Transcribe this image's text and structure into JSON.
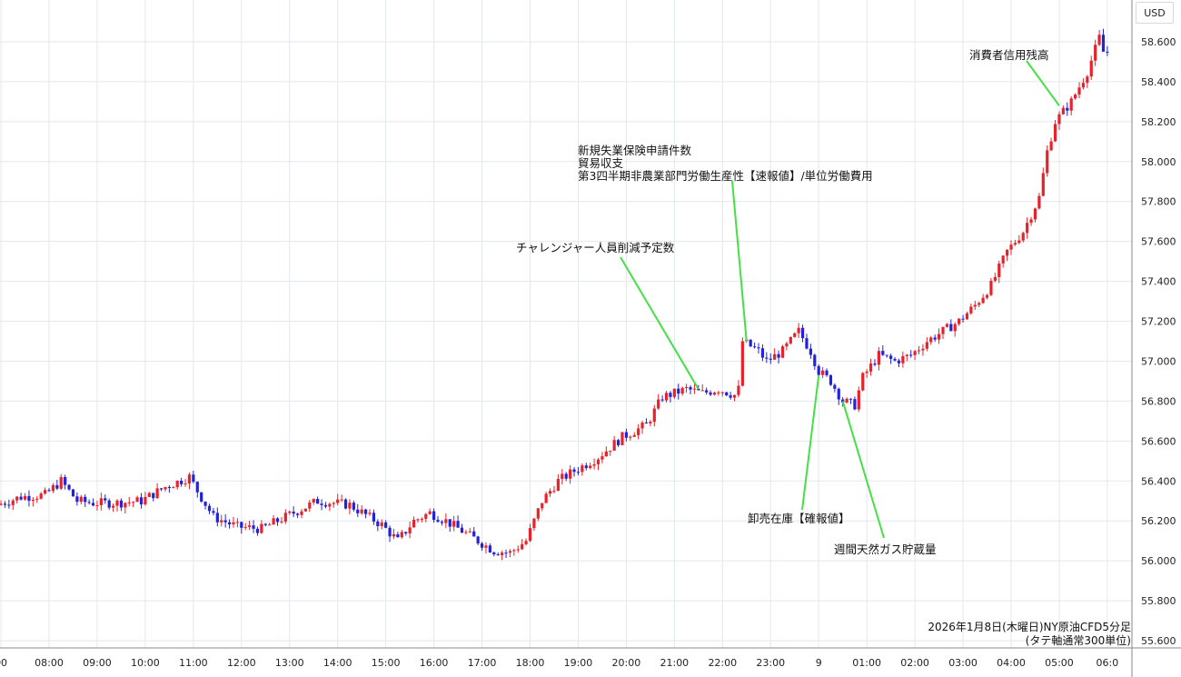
{
  "currency_label": "USD",
  "chart_data": {
    "type": "candlestick",
    "title": "2026年1月8日(木曜日)NY原油CFD5分足",
    "subtitle": "(タテ軸通常300単位)",
    "y_range": [
      55.55,
      58.72
    ],
    "y_ticks": [
      "58.600",
      "58.400",
      "58.200",
      "58.000",
      "57.800",
      "57.600",
      "57.400",
      "57.200",
      "57.000",
      "56.800",
      "56.600",
      "56.400",
      "56.200",
      "56.000",
      "55.800",
      "55.600"
    ],
    "x_ticks": [
      "00",
      "08:00",
      "09:00",
      "10:00",
      "11:00",
      "12:00",
      "13:00",
      "14:00",
      "15:00",
      "16:00",
      "17:00",
      "18:00",
      "19:00",
      "20:00",
      "21:00",
      "22:00",
      "23:00",
      "9",
      "01:00",
      "02:00",
      "03:00",
      "04:00",
      "05:00",
      "06:0"
    ],
    "x_range_hours": [
      7.1,
      6.02
    ],
    "up_color": "#e8222a",
    "down_color": "#2222d8",
    "annotation_color": "#44e044",
    "grid": true,
    "close_path": [
      {
        "t": "07:00",
        "price": 56.28
      },
      {
        "t": "07:30",
        "price": 56.32
      },
      {
        "t": "08:00",
        "price": 56.33
      },
      {
        "t": "08:20",
        "price": 56.4
      },
      {
        "t": "08:40",
        "price": 56.3
      },
      {
        "t": "09:00",
        "price": 56.29
      },
      {
        "t": "09:30",
        "price": 56.29
      },
      {
        "t": "10:00",
        "price": 56.3
      },
      {
        "t": "10:30",
        "price": 56.37
      },
      {
        "t": "11:00",
        "price": 56.42
      },
      {
        "t": "11:10",
        "price": 56.35
      },
      {
        "t": "11:30",
        "price": 56.22
      },
      {
        "t": "12:00",
        "price": 56.17
      },
      {
        "t": "12:30",
        "price": 56.16
      },
      {
        "t": "13:00",
        "price": 56.22
      },
      {
        "t": "13:40",
        "price": 56.3
      },
      {
        "t": "14:20",
        "price": 56.28
      },
      {
        "t": "15:00",
        "price": 56.18
      },
      {
        "t": "15:20",
        "price": 56.1
      },
      {
        "t": "15:40",
        "price": 56.2
      },
      {
        "t": "16:00",
        "price": 56.24
      },
      {
        "t": "16:20",
        "price": 56.2
      },
      {
        "t": "16:40",
        "price": 56.15
      },
      {
        "t": "17:00",
        "price": 56.1
      },
      {
        "t": "17:20",
        "price": 56.05
      },
      {
        "t": "17:40",
        "price": 56.04
      },
      {
        "t": "18:00",
        "price": 56.1
      },
      {
        "t": "18:20",
        "price": 56.3
      },
      {
        "t": "18:40",
        "price": 56.4
      },
      {
        "t": "19:00",
        "price": 56.45
      },
      {
        "t": "19:30",
        "price": 56.52
      },
      {
        "t": "20:00",
        "price": 56.62
      },
      {
        "t": "20:30",
        "price": 56.68
      },
      {
        "t": "20:50",
        "price": 56.82
      },
      {
        "t": "21:20",
        "price": 56.86
      },
      {
        "t": "21:40",
        "price": 56.84
      },
      {
        "t": "22:00",
        "price": 56.86
      },
      {
        "t": "22:20",
        "price": 56.83
      },
      {
        "t": "22:25",
        "price": 56.86
      },
      {
        "t": "22:30",
        "price": 57.1
      },
      {
        "t": "22:50",
        "price": 57.05
      },
      {
        "t": "23:00",
        "price": 57.0
      },
      {
        "t": "23:20",
        "price": 57.05
      },
      {
        "t": "23:40",
        "price": 57.15
      },
      {
        "t": "23:55",
        "price": 57.05
      },
      {
        "t": "00:05",
        "price": 56.95
      },
      {
        "t": "00:20",
        "price": 56.9
      },
      {
        "t": "00:35",
        "price": 56.8
      },
      {
        "t": "00:50",
        "price": 56.78
      },
      {
        "t": "01:00",
        "price": 56.92
      },
      {
        "t": "01:20",
        "price": 57.03
      },
      {
        "t": "01:40",
        "price": 57.0
      },
      {
        "t": "02:00",
        "price": 57.03
      },
      {
        "t": "02:20",
        "price": 57.1
      },
      {
        "t": "02:40",
        "price": 57.15
      },
      {
        "t": "03:00",
        "price": 57.2
      },
      {
        "t": "03:20",
        "price": 57.28
      },
      {
        "t": "03:40",
        "price": 57.38
      },
      {
        "t": "04:00",
        "price": 57.55
      },
      {
        "t": "04:20",
        "price": 57.65
      },
      {
        "t": "04:40",
        "price": 57.82
      },
      {
        "t": "04:50",
        "price": 58.05
      },
      {
        "t": "05:00",
        "price": 58.2
      },
      {
        "t": "05:20",
        "price": 58.3
      },
      {
        "t": "05:40",
        "price": 58.45
      },
      {
        "t": "05:55",
        "price": 58.62
      },
      {
        "t": "06:00",
        "price": 58.55
      }
    ],
    "annotations": [
      {
        "lines": [
          "消費者信用残高"
        ],
        "t": "05:00",
        "price": 58.28
      },
      {
        "lines": [
          "新規失業保険申請件数",
          "貿易収支",
          "第3四半期非農業部門労働生産性【速報値】/単位労働費用"
        ],
        "t": "22:30",
        "price": 57.1
      },
      {
        "lines": [
          "チャレンジャー人員削減予定数"
        ],
        "t": "21:30",
        "price": 56.86
      },
      {
        "lines": [
          "卸売在庫【確報値】"
        ],
        "t": "00:00",
        "price": 56.93
      },
      {
        "lines": [
          "週間天然ガス貯蔵量"
        ],
        "t": "00:30",
        "price": 56.8
      }
    ]
  }
}
